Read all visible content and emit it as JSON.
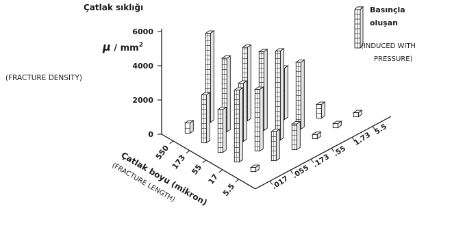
{
  "chart_data": {
    "type": "bar3d",
    "title": "Çatlak sıklığı",
    "density_unit_symbol": "μ",
    "density_unit_rest": " / mm",
    "density_unit_power": "2",
    "density_label_en": "(FRACTURE  DENSITY)",
    "z_ticks": [
      {
        "value": 0,
        "label": "0"
      },
      {
        "value": 2000,
        "label": "2000"
      },
      {
        "value": 4000,
        "label": "4000"
      },
      {
        "value": 6000,
        "label": "6000"
      }
    ],
    "zlim": [
      0,
      6000
    ],
    "length_label": "Çatlak boyu (mikron)",
    "length_label_en": "(FRACTURE  LENGTH)",
    "length_ticks": [
      "550",
      "173",
      "55",
      "17",
      "5.5"
    ],
    "width_ticks": [
      "5.5",
      "1.73",
      ".55",
      ".173",
      ".055",
      ".017"
    ],
    "legend": {
      "line1": "Basınçla",
      "line2": "oluşan",
      "line3": "(INDUCED WITH",
      "line4": "PRESSURE)",
      "position": "top-right"
    },
    "bars": [
      {
        "length": "550",
        "width": ".017",
        "value": 600
      },
      {
        "length": "550",
        "width": ".055",
        "value": 5200
      },
      {
        "length": "173",
        "width": ".017",
        "value": 2800
      },
      {
        "length": "173",
        "width": ".055",
        "value": 4300
      },
      {
        "length": "173",
        "width": ".173",
        "value": 4300
      },
      {
        "length": "55",
        "width": ".017",
        "value": 2500
      },
      {
        "length": "55",
        "width": ".055",
        "value": 3400
      },
      {
        "length": "55",
        "width": ".173",
        "value": 4600
      },
      {
        "length": "55",
        "width": ".55",
        "value": 3000
      },
      {
        "length": "17",
        "width": ".017",
        "value": 4200
      },
      {
        "length": "17",
        "width": ".055",
        "value": 3600
      },
      {
        "length": "17",
        "width": ".173",
        "value": 5200
      },
      {
        "length": "17",
        "width": ".55",
        "value": 3900
      },
      {
        "length": "17",
        "width": "1.73",
        "value": 800
      },
      {
        "length": "5.5",
        "width": ".017",
        "value": 150
      },
      {
        "length": "5.5",
        "width": ".055",
        "value": 1700
      },
      {
        "length": "5.5",
        "width": ".173",
        "value": 1500
      },
      {
        "length": "5.5",
        "width": ".55",
        "value": 250
      },
      {
        "length": "5.5",
        "width": "1.73",
        "value": 200
      },
      {
        "length": "5.5",
        "width": "5.5",
        "value": 100
      }
    ]
  }
}
